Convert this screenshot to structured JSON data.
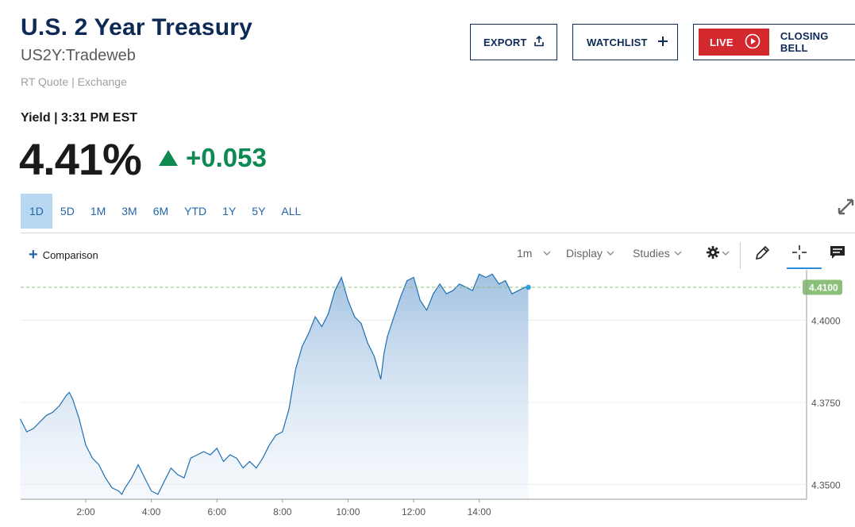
{
  "header": {
    "title": "U.S. 2 Year Treasury",
    "symbol": "US2Y:Tradeweb",
    "quote_meta": "RT Quote | Exchange"
  },
  "buttons": {
    "export": "EXPORT",
    "watchlist": "WATCHLIST",
    "live": "LIVE",
    "closing_bell": "CLOSING BELL"
  },
  "quote": {
    "yield_label": "Yield | 3:31 PM EST",
    "price": "4.41%",
    "change": "+0.053"
  },
  "ranges": [
    "1D",
    "5D",
    "1M",
    "3M",
    "6M",
    "YTD",
    "1Y",
    "5Y",
    "ALL"
  ],
  "active_range": "1D",
  "toolbar": {
    "comparison": "Comparison",
    "interval": "1m",
    "display": "Display",
    "studies": "Studies"
  },
  "icons": {
    "export": "share-upload-icon",
    "watchlist": "plus-icon",
    "live": "play-circle-icon",
    "expand": "expand-diagonal-icon",
    "settings": "gear-icon",
    "draw": "pencil-icon",
    "crosshair": "crosshair-icon",
    "comment": "comment-icon"
  },
  "colors": {
    "brand_navy": "#0d2a57",
    "positive": "#0d8a52",
    "live_red": "#d3282d",
    "line": "#1f6fb2",
    "last_price_tag": "#8cc07a"
  },
  "chart_data": {
    "type": "area",
    "x_labels": [
      "2:00",
      "4:00",
      "6:00",
      "8:00",
      "10:00",
      "12:00",
      "14:00"
    ],
    "y_labels": [
      "4.4000",
      "4.3750",
      "4.3500"
    ],
    "ylim": [
      4.3455,
      4.4153
    ],
    "last_value_label": "4.4100",
    "last_value": 4.41,
    "series": [
      {
        "x": [
          0.0,
          0.2,
          0.4,
          0.6,
          0.8,
          1.0,
          1.2,
          1.4,
          1.5,
          1.6,
          1.8,
          2.0,
          2.2,
          2.4,
          2.6,
          2.8,
          3.0,
          3.1,
          3.2,
          3.4,
          3.6,
          3.8,
          4.0,
          4.2,
          4.4,
          4.6,
          4.8,
          5.0,
          5.2,
          5.4,
          5.6,
          5.8,
          6.0,
          6.2,
          6.4,
          6.6,
          6.8,
          7.0,
          7.2,
          7.4,
          7.6,
          7.8,
          8.0,
          8.2,
          8.4,
          8.6,
          8.8,
          9.0,
          9.2,
          9.4,
          9.6,
          9.8,
          10.0,
          10.2,
          10.4,
          10.6,
          10.8,
          11.0,
          11.1,
          11.2,
          11.4,
          11.6,
          11.8,
          12.0,
          12.2,
          12.4,
          12.6,
          12.8,
          13.0,
          13.2,
          13.4,
          13.6,
          13.8,
          14.0,
          14.2,
          14.4,
          14.6,
          14.8,
          15.0,
          15.2,
          15.4,
          15.5
        ],
        "values": [
          4.37,
          4.366,
          4.367,
          4.369,
          4.371,
          4.372,
          4.374,
          4.377,
          4.378,
          4.376,
          4.37,
          4.362,
          4.358,
          4.356,
          4.352,
          4.349,
          4.348,
          4.347,
          4.349,
          4.352,
          4.356,
          4.352,
          4.348,
          4.347,
          4.351,
          4.355,
          4.353,
          4.352,
          4.358,
          4.359,
          4.36,
          4.359,
          4.361,
          4.357,
          4.359,
          4.358,
          4.355,
          4.357,
          4.355,
          4.358,
          4.362,
          4.365,
          4.366,
          4.373,
          4.385,
          4.392,
          4.396,
          4.401,
          4.398,
          4.402,
          4.409,
          4.413,
          4.406,
          4.401,
          4.399,
          4.393,
          4.389,
          4.382,
          4.39,
          4.395,
          4.401,
          4.407,
          4.412,
          4.413,
          4.406,
          4.403,
          4.408,
          4.411,
          4.408,
          4.409,
          4.411,
          4.41,
          4.409,
          4.414,
          4.413,
          4.414,
          4.411,
          4.412,
          4.408,
          4.409,
          4.41,
          4.41
        ]
      }
    ],
    "grid": true,
    "legend": "none"
  }
}
